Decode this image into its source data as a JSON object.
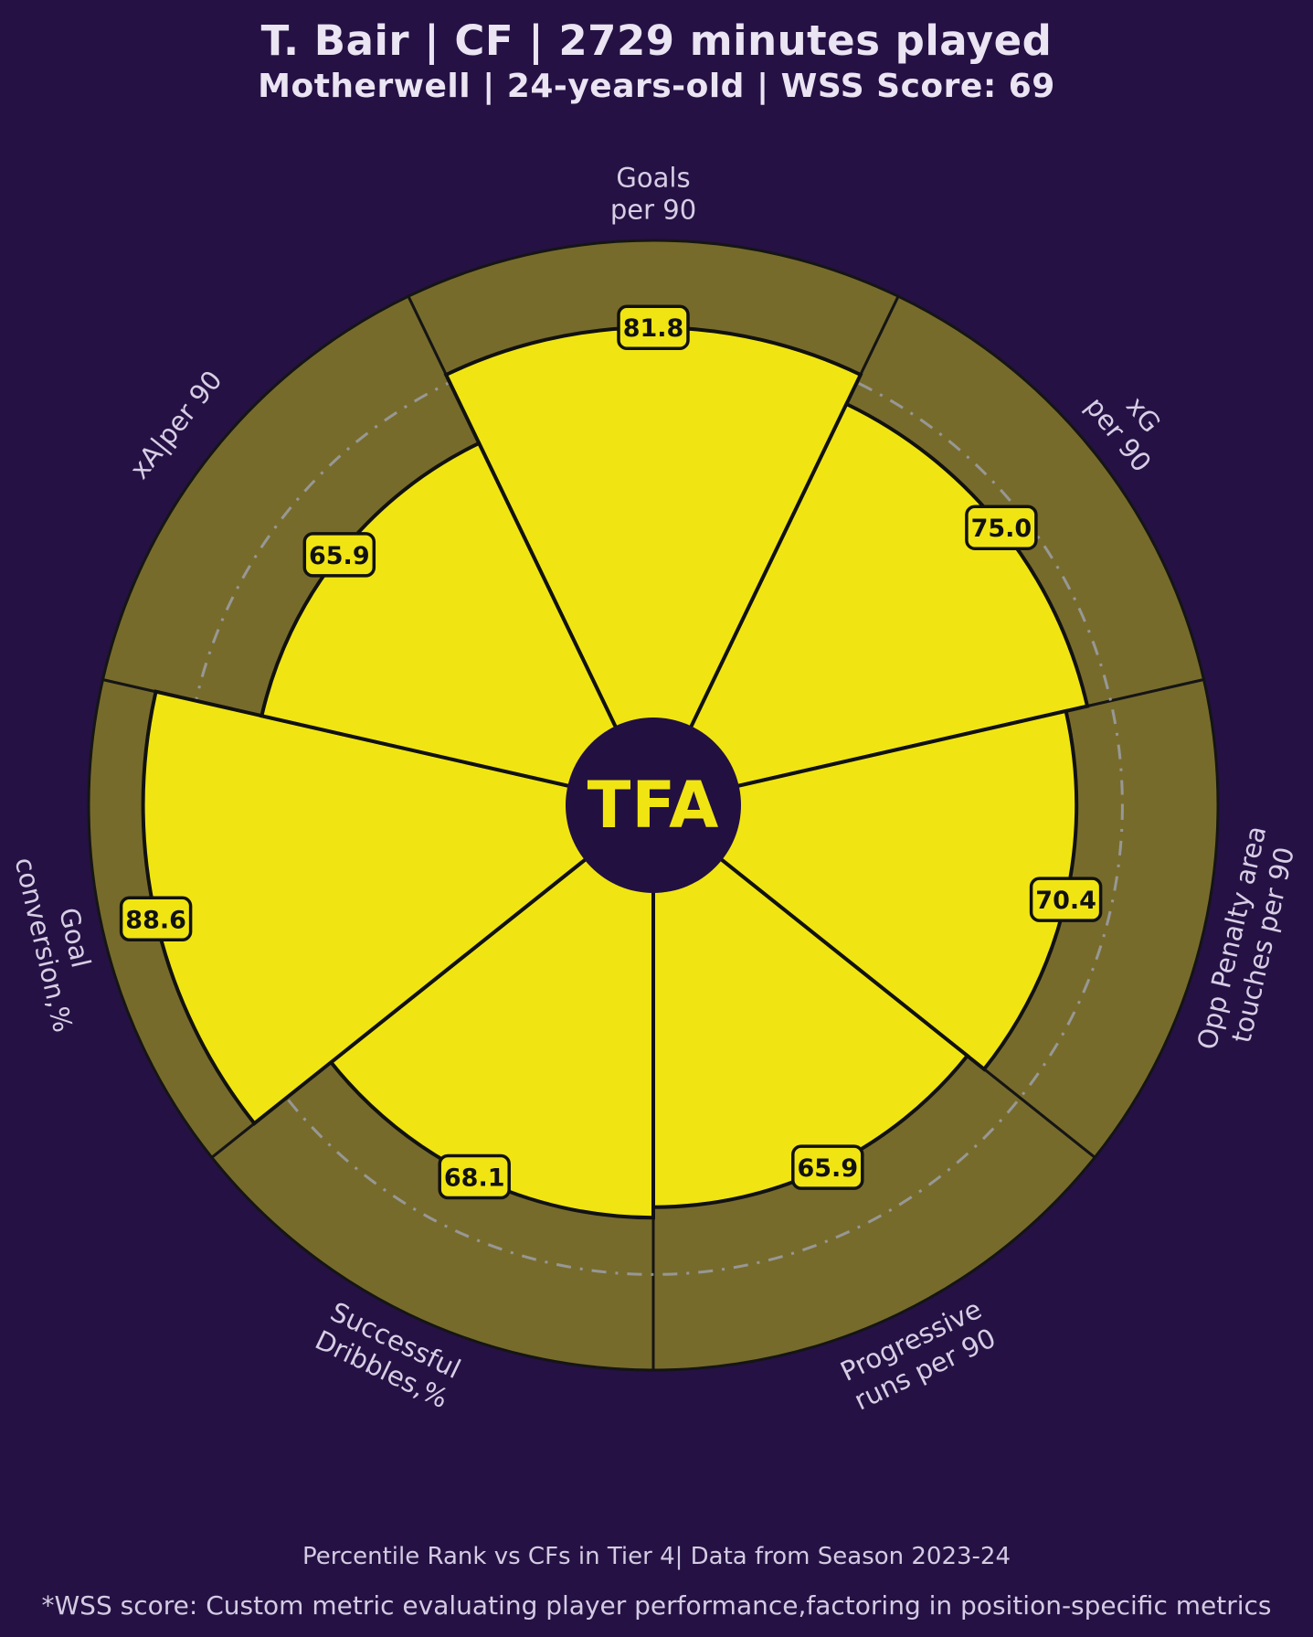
{
  "header": {
    "title": "T. Bair | CF | 2729 minutes played",
    "subtitle": "Motherwell | 24-years-old | WSS Score: 69"
  },
  "center_logo": {
    "text": "TFA"
  },
  "footer": {
    "line1": "Percentile Rank vs CFs in Tier 4| Data from Season 2023-24",
    "line2": "*WSS score: Custom metric evaluating player performance,factoring in position-specific metrics"
  },
  "chart_data": {
    "type": "pizza",
    "title": "T. Bair | CF | 2729 minutes played",
    "subtitle": "Motherwell | 24-years-old | WSS Score: 69",
    "description": "Percentile rank pizza chart, one slice per metric, values 0-100",
    "scale": {
      "min": 0,
      "max": 100
    },
    "reference_ring_percentile": 80,
    "params": [
      {
        "label": "Goals per 90",
        "label_lines": [
          "Goals",
          "per 90"
        ],
        "value": 81.8
      },
      {
        "label": "xG per 90",
        "label_lines": [
          "xG",
          "per 90"
        ],
        "value": 75.0
      },
      {
        "label": "Opp Penalty area touches per 90",
        "label_lines": [
          "Opp Penalty area",
          "touches per 90"
        ],
        "value": 70.4
      },
      {
        "label": "Progressive runs per 90",
        "label_lines": [
          "Progressive",
          "runs per 90"
        ],
        "value": 65.9
      },
      {
        "label": "Successful Dribbles,%",
        "label_lines": [
          "Successful",
          "Dribbles,%"
        ],
        "value": 68.1
      },
      {
        "label": "Goal conversion,%",
        "label_lines": [
          "Goal",
          "conversion,%"
        ],
        "value": 88.6
      },
      {
        "label": "xA|per 90",
        "label_lines": [
          "xA|per 90"
        ],
        "value": 65.9
      }
    ],
    "colors": {
      "background": "#251144",
      "slice_fill": "#F0E512",
      "ring_fill": "#776B2C",
      "outline": "#111111",
      "reference_dash": "#9CA0A8",
      "badge_fill": "#F0E512",
      "badge_border": "#111111",
      "badge_text": "#111111",
      "label_text": "#D6CEE5",
      "title_text": "#EAE4F3",
      "logo_text": "#F0E512",
      "logo_circle": "#221040"
    },
    "legend": "none",
    "footnote1": "Percentile Rank vs CFs in Tier 4| Data from Season 2023-24",
    "footnote2": "*WSS score: Custom metric evaluating player performance,factoring in position-specific metrics"
  }
}
